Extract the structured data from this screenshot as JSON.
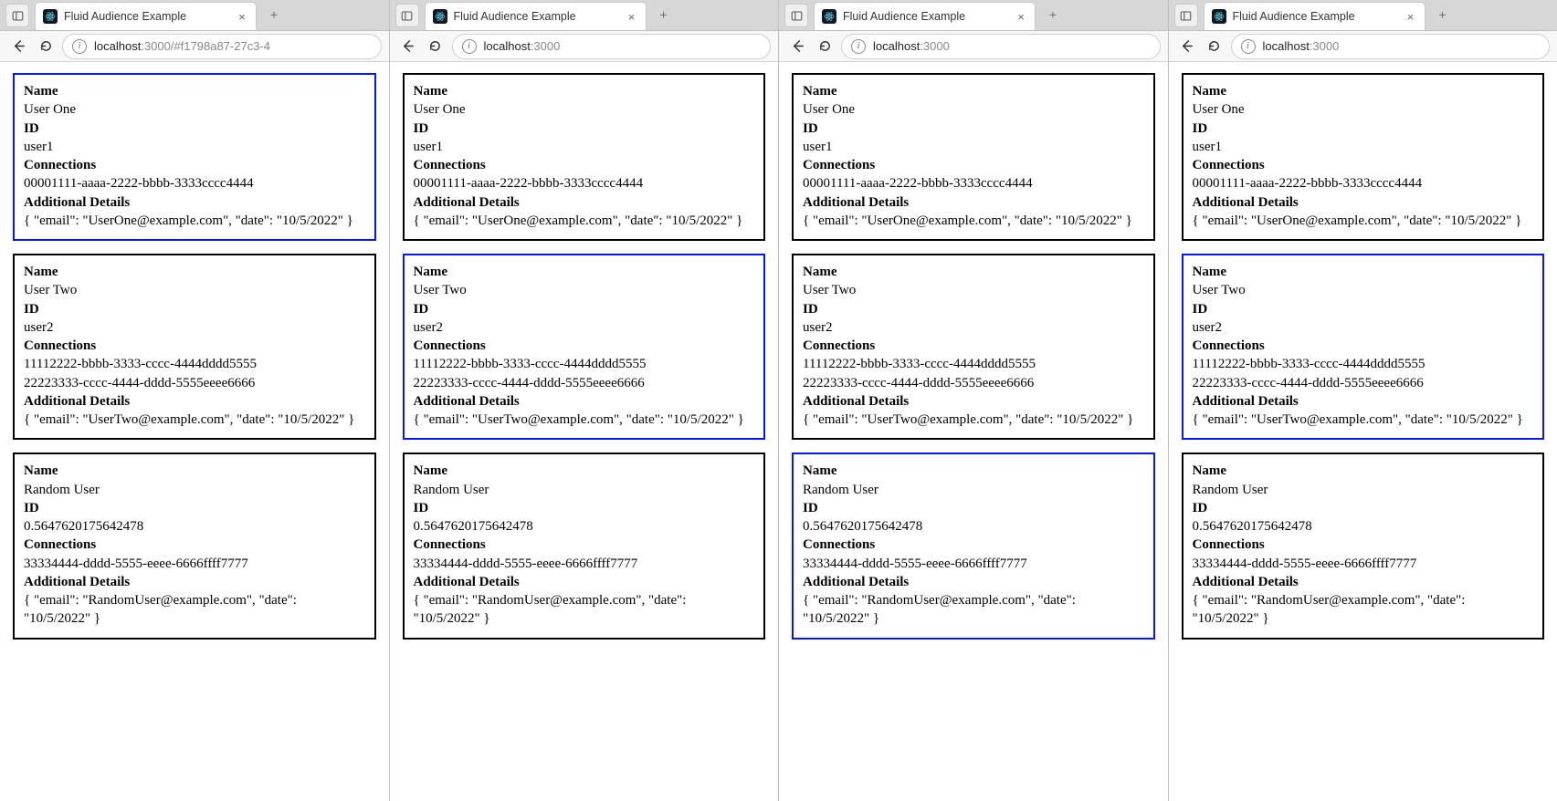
{
  "style": {
    "highlight_border_color": "#0017ff",
    "default_border_color": "#000000",
    "tabstrip_bg": "#d7d7d7",
    "toolbar_bg": "#f7f7f7",
    "favicon_bg": "#141821",
    "page_font": "Times New Roman"
  },
  "labels": {
    "name": "Name",
    "id": "ID",
    "connections": "Connections",
    "details": "Additional Details"
  },
  "users": [
    {
      "name": "User One",
      "id": "user1",
      "connections": [
        "00001111-aaaa-2222-bbbb-3333cccc4444"
      ],
      "details": "{ \"email\": \"UserOne@example.com\", \"date\": \"10/5/2022\" }"
    },
    {
      "name": "User Two",
      "id": "user2",
      "connections": [
        "11112222-bbbb-3333-cccc-4444dddd5555",
        "22223333-cccc-4444-dddd-5555eeee6666"
      ],
      "details": "{ \"email\": \"UserTwo@example.com\", \"date\": \"10/5/2022\" }"
    },
    {
      "name": "Random User",
      "id": "0.5647620175642478",
      "connections": [
        "33334444-dddd-5555-eeee-6666ffff7777"
      ],
      "details": "{ \"email\": \"RandomUser@example.com\", \"date\": \"10/5/2022\" }"
    }
  ],
  "windows": [
    {
      "tab_title": "Fluid Audience Example",
      "url_host": "localhost",
      "url_port": ":3000",
      "url_path": "/#f1798a87-27c3-4",
      "highlight_index": 0
    },
    {
      "tab_title": "Fluid Audience Example",
      "url_host": "localhost",
      "url_port": ":3000",
      "url_path": "",
      "highlight_index": 1
    },
    {
      "tab_title": "Fluid Audience Example",
      "url_host": "localhost",
      "url_port": ":3000",
      "url_path": "",
      "highlight_index": 2
    },
    {
      "tab_title": "Fluid Audience Example",
      "url_host": "localhost",
      "url_port": ":3000",
      "url_path": "",
      "highlight_index": 1
    }
  ]
}
